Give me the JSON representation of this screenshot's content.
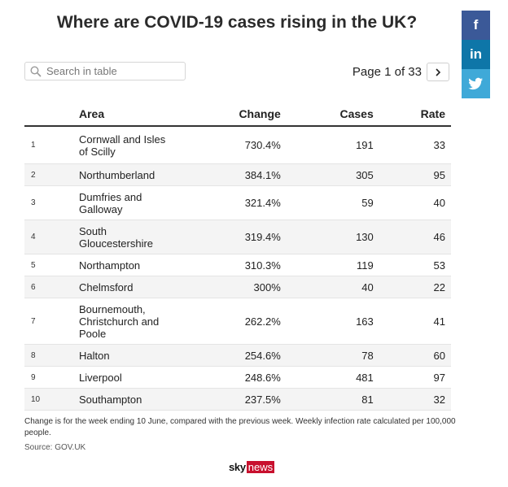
{
  "title": "Where are COVID-19 cases rising in the UK?",
  "search": {
    "placeholder": "Search in table",
    "value": ""
  },
  "pagination": {
    "label": "Page 1 of 33",
    "current_page": 1,
    "total_pages": 33
  },
  "social": {
    "facebook": "f",
    "linkedin": "in",
    "twitter": "twitter-bird-icon"
  },
  "table": {
    "columns": [
      "",
      "Area",
      "Change",
      "Cases",
      "Rate"
    ],
    "rows": [
      {
        "rank": "1",
        "area": "Cornwall and Isles of Scilly",
        "change": "730.4%",
        "cases": "191",
        "rate": "33"
      },
      {
        "rank": "2",
        "area": "Northumberland",
        "change": "384.1%",
        "cases": "305",
        "rate": "95"
      },
      {
        "rank": "3",
        "area": "Dumfries and Galloway",
        "change": "321.4%",
        "cases": "59",
        "rate": "40"
      },
      {
        "rank": "4",
        "area": "South Gloucestershire",
        "change": "319.4%",
        "cases": "130",
        "rate": "46"
      },
      {
        "rank": "5",
        "area": "Northampton",
        "change": "310.3%",
        "cases": "119",
        "rate": "53"
      },
      {
        "rank": "6",
        "area": "Chelmsford",
        "change": "300%",
        "cases": "40",
        "rate": "22"
      },
      {
        "rank": "7",
        "area": "Bournemouth, Christchurch and Poole",
        "change": "262.2%",
        "cases": "163",
        "rate": "41"
      },
      {
        "rank": "8",
        "area": "Halton",
        "change": "254.6%",
        "cases": "78",
        "rate": "60"
      },
      {
        "rank": "9",
        "area": "Liverpool",
        "change": "248.6%",
        "cases": "481",
        "rate": "97"
      },
      {
        "rank": "10",
        "area": "Southampton",
        "change": "237.5%",
        "cases": "81",
        "rate": "32"
      }
    ]
  },
  "note": "Change is for the week ending 10 June, compared with the previous week. Weekly infection rate calculated per 100,000 people.",
  "source": "Source: GOV.UK",
  "logo": {
    "sky": "sky",
    "news": "news"
  },
  "colors": {
    "facebook": "#3b5998",
    "linkedin": "#0e76a8",
    "twitter": "#3fa9d8",
    "sky_news_red": "#c8102e"
  }
}
